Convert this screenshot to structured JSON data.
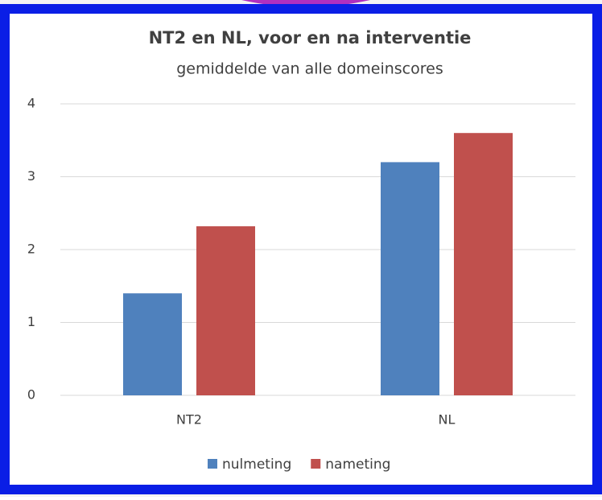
{
  "chart_data": {
    "type": "bar",
    "title": "NT2 en NL, voor en na interventie",
    "subtitle": "gemiddelde van alle domeinscores",
    "categories": [
      "NT2",
      "NL"
    ],
    "series": [
      {
        "name": "nulmeting",
        "color": "#4f81bd",
        "values": [
          1.4,
          3.2
        ]
      },
      {
        "name": "nameting",
        "color": "#c0504d",
        "values": [
          2.32,
          3.6
        ]
      }
    ],
    "ylim": [
      0,
      4
    ],
    "yticks": [
      0,
      1,
      2,
      3,
      4
    ],
    "grid": true,
    "legend": "bottom"
  }
}
